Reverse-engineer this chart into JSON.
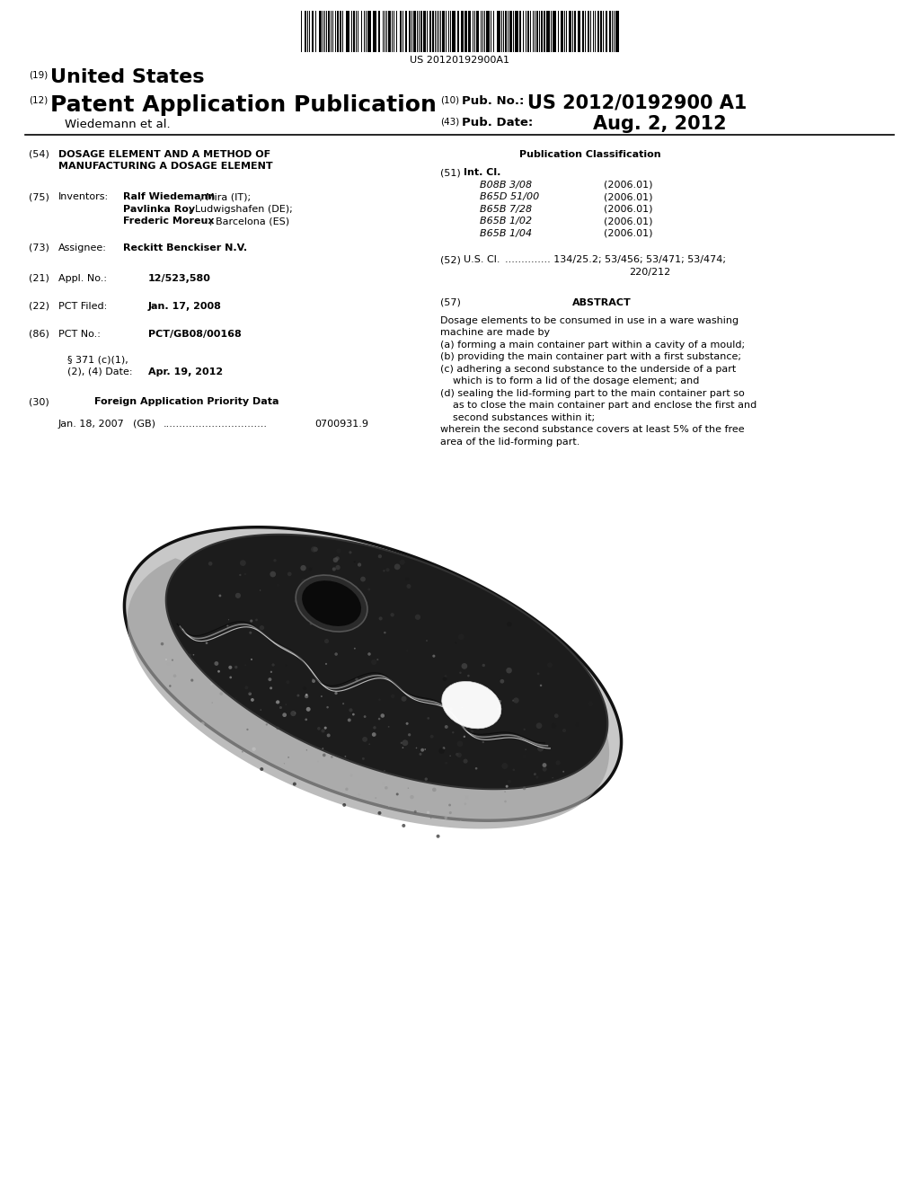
{
  "bg_color": "#ffffff",
  "barcode_text": "US 20120192900A1",
  "field54_line1": "DOSAGE ELEMENT AND A METHOD OF",
  "field54_line2": "MANUFACTURING A DOSAGE ELEMENT",
  "field75_val1_bold": "Ralf Wiedemann",
  "field75_val1_norm": ", Mira (IT);",
  "field75_val2_bold": "Pavlinka Roy",
  "field75_val2_norm": ", Ludwigshafen (DE);",
  "field75_val3_bold": "Frederic Moreux",
  "field75_val3_norm": ", Barcelona (ES)",
  "field73_val": "Reckitt Benckiser N.V.",
  "field21_val": "12/523,580",
  "field22_val": "Jan. 17, 2008",
  "field86_val": "PCT/GB08/00168",
  "field86b_val": "Apr. 19, 2012",
  "field30_num": "0700931.9",
  "field51_rows": [
    [
      "B08B 3/08",
      "(2006.01)"
    ],
    [
      "B65D 51/00",
      "(2006.01)"
    ],
    [
      "B65B 7/28",
      "(2006.01)"
    ],
    [
      "B65B 1/02",
      "(2006.01)"
    ],
    [
      "B65B 1/04",
      "(2006.01)"
    ]
  ]
}
